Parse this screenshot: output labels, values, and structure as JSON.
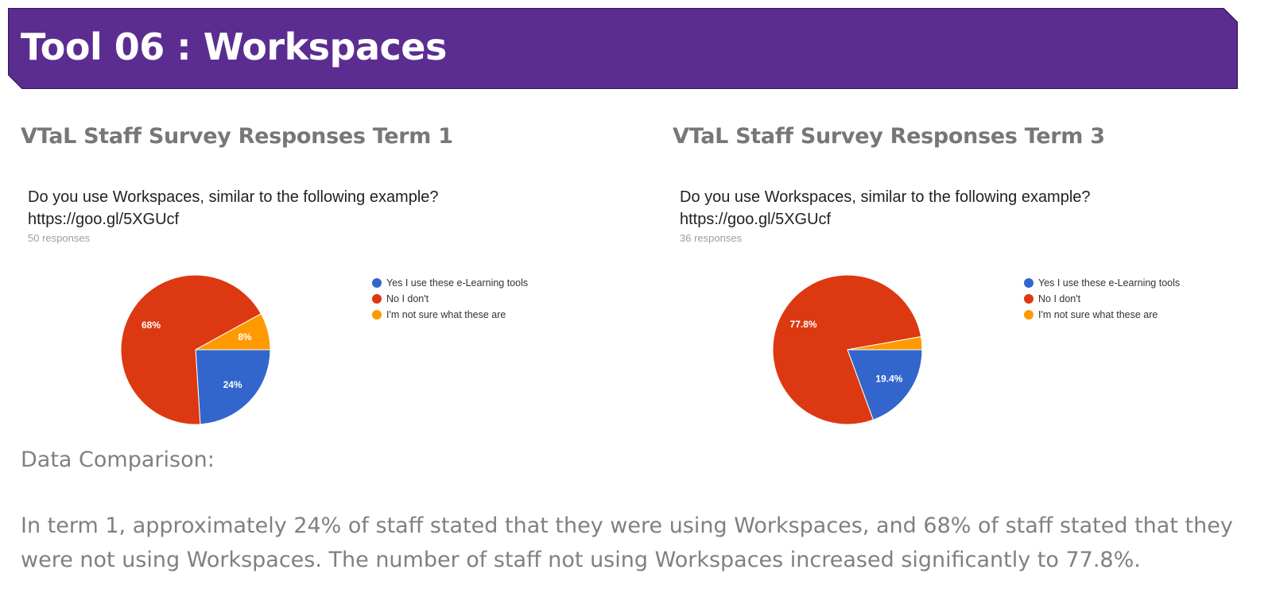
{
  "banner": {
    "title": "Tool 06 : Workspaces",
    "fill_color": "#5b2d91",
    "border_color": "#3a1a60"
  },
  "panels": [
    {
      "heading": "VTaL Staff Survey Responses Term 1",
      "question_line1": "Do you use Workspaces, similar to the following example?",
      "question_line2": "https://goo.gl/5XGUcf",
      "responses": "50 responses"
    },
    {
      "heading": "VTaL Staff Survey Responses Term 3",
      "question_line1": "Do you use Workspaces, similar to the following example?",
      "question_line2": "https://goo.gl/5XGUcf",
      "responses": "36 responses"
    }
  ],
  "chart_data": [
    {
      "type": "pie",
      "title": "Do you use Workspaces, similar to the following example? https://goo.gl/5XGUcf",
      "categories": [
        "Yes I use these e-Learning tools",
        "No I don't",
        "I'm not sure what these are"
      ],
      "values": [
        24,
        68,
        8
      ],
      "labels": [
        "24%",
        "68%",
        "8%"
      ],
      "colors": [
        "#3366cc",
        "#dc3912",
        "#ff9900"
      ],
      "legend_position": "right"
    },
    {
      "type": "pie",
      "title": "Do you use Workspaces, similar to the following example? https://goo.gl/5XGUcf",
      "categories": [
        "Yes I use these e-Learning tools",
        "No I don't",
        "I'm not sure what these are"
      ],
      "values": [
        19.4,
        77.8,
        2.8
      ],
      "labels": [
        "19.4%",
        "77.8%",
        ""
      ],
      "colors": [
        "#3366cc",
        "#dc3912",
        "#ff9900"
      ],
      "legend_position": "right"
    }
  ],
  "comparison": {
    "heading": "Data Comparison:",
    "body": "In term 1, approximately 24% of staff stated that they were using Workspaces, and 68% of staff stated that they were not using Workspaces.  The number of staff not using Workspaces increased significantly to 77.8%."
  }
}
